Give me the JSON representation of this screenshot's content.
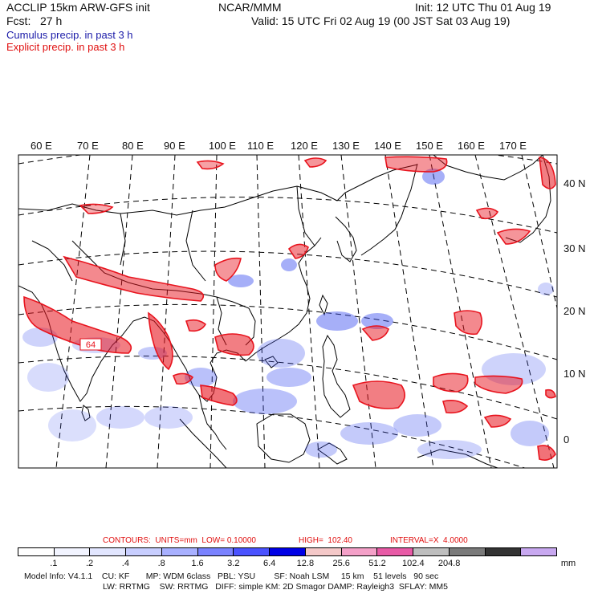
{
  "header": {
    "line1_left": "ACCLIP 15km ARW-GFS init",
    "line1_center": "NCAR/MMM",
    "line1_right": "Init: 12 UTC Thu 01 Aug 19",
    "line2_left": "Fcst:   27 h",
    "line2_right": "Valid: 15 UTC Fri 02 Aug 19 (00 JST Sat 03 Aug 19)",
    "line3": "Cumulus precip. in past 3 h",
    "line4": "Explicit precip. in past 3 h"
  },
  "map": {
    "lon_labels": [
      "60 E",
      "70 E",
      "80 E",
      "90 E",
      "100 E",
      "110 E",
      "120 E",
      "130 E",
      "140 E",
      "150 E",
      "160 E",
      "170 E"
    ],
    "lat_labels": [
      "40 N",
      "30 N",
      "20 N",
      "10 N",
      "0"
    ],
    "contour_label": "64",
    "colors": {
      "cumulus": "#3a4ef0",
      "explicit": "#e8141e",
      "coast": "#000000",
      "grid": "#000000"
    }
  },
  "legend": {
    "contours_line": {
      "prefix": "CONTOURS:  UNITS=mm  LOW= 0.10000",
      "high": "HIGH=  102.40",
      "interval": "INTERVAL=X  4.0000"
    },
    "colors": [
      "#ffffff",
      "#f2f4ff",
      "#e2e6ff",
      "#c8ceff",
      "#a8b0ff",
      "#7a82ff",
      "#4a52ff",
      "#0000e6",
      "#f4c8c8",
      "#f4a0c8",
      "#e85aa6",
      "#bebebe",
      "#7a7a7a",
      "#333333",
      "#c8a8f0"
    ],
    "ticks_upper": [
      ".1",
      ".2",
      ".4",
      ".8",
      "1.6",
      "3.2",
      "6.4",
      "12.8",
      "25.6",
      "51.2",
      "102.4",
      "204.8"
    ],
    "unit": "mm"
  },
  "model_info": {
    "line1": "Model Info: V4.1.1    CU: KF       MP: WDM 6class   PBL: YSU        SF: Noah LSM     15 km    51 levels   90 sec",
    "line2": "LW: RRTMG    SW: RRTMG   DIFF: simple KM: 2D Smagor DAMP: Rayleigh3  SFLAY: MM5"
  }
}
